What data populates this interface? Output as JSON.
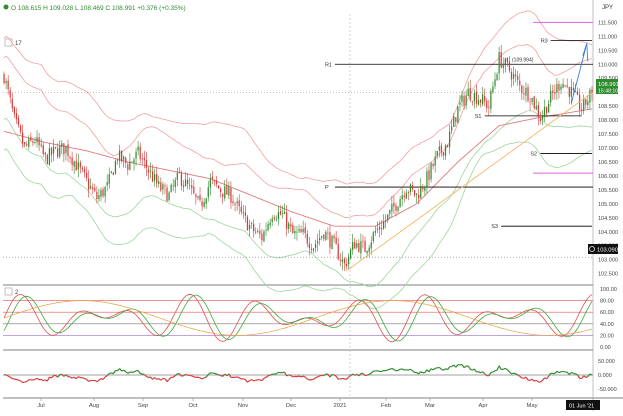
{
  "header": {
    "ohlc": "O 108.615  H 109.028  L 108.469  C 108.991  +0.376 (+0.35%)",
    "symbol": "JPY"
  },
  "panels": {
    "price_tag": "17",
    "osc_tag": "2",
    "date_badge": "01 Jun '21"
  },
  "colors": {
    "bull": "#2e8b2e",
    "bear": "#d83a3a",
    "band": "#f2a0a0",
    "band_green": "#9fd49f",
    "trend": "#f3b76a",
    "pivot": "#000000",
    "magenta": "#e060e0",
    "arrow": "#3b7dd8"
  },
  "chart_data": [
    {
      "type": "candlestick",
      "symbol": "JPY",
      "x_ticks": [
        "Jul",
        "Aug",
        "Sep",
        "Oct",
        "Nov",
        "Dec",
        "2021",
        "Feb",
        "Mar",
        "Apr",
        "May"
      ],
      "y_ticks": [
        102.5,
        103.0,
        103.5,
        104.0,
        104.5,
        105.0,
        105.5,
        106.0,
        106.5,
        107.0,
        107.5,
        108.0,
        108.5,
        109.0,
        109.5,
        110.0,
        110.5,
        111.0,
        111.5
      ],
      "ylim": [
        102.2,
        111.8
      ],
      "last_price": "108.991",
      "last_price_time": "15:48:10",
      "crosshair_price": "103.090",
      "pivots": [
        {
          "label": "R1",
          "value": 110.0
        },
        {
          "label": "P",
          "value": 105.6
        },
        {
          "label": "S1",
          "value": 108.15
        },
        {
          "label": "S2",
          "value": 106.8
        },
        {
          "label": "S3",
          "value": 104.2
        },
        {
          "label": "R3",
          "value": 110.85
        }
      ],
      "annotation": "(109.994)",
      "close_path": [
        [
          0,
          109.6
        ],
        [
          5,
          108.0
        ],
        [
          10,
          107.0
        ],
        [
          15,
          107.3
        ],
        [
          20,
          106.6
        ],
        [
          25,
          106.9
        ],
        [
          30,
          107.0
        ],
        [
          35,
          106.4
        ],
        [
          40,
          105.8
        ],
        [
          45,
          105.2
        ],
        [
          50,
          105.6
        ],
        [
          55,
          106.7
        ],
        [
          60,
          106.4
        ],
        [
          65,
          106.8
        ],
        [
          70,
          106.2
        ],
        [
          75,
          105.6
        ],
        [
          80,
          105.3
        ],
        [
          85,
          106.0
        ],
        [
          90,
          105.5
        ],
        [
          95,
          104.9
        ],
        [
          100,
          105.8
        ],
        [
          105,
          105.5
        ],
        [
          110,
          105.3
        ],
        [
          115,
          104.6
        ],
        [
          120,
          104.1
        ],
        [
          125,
          103.8
        ],
        [
          130,
          104.7
        ],
        [
          135,
          104.6
        ],
        [
          140,
          103.9
        ],
        [
          145,
          103.9
        ],
        [
          150,
          103.5
        ],
        [
          155,
          104.0
        ],
        [
          160,
          103.5
        ],
        [
          165,
          102.8
        ],
        [
          170,
          103.6
        ],
        [
          175,
          103.4
        ],
        [
          180,
          104.0
        ],
        [
          185,
          104.4
        ],
        [
          190,
          105.0
        ],
        [
          195,
          105.6
        ],
        [
          200,
          105.3
        ],
        [
          205,
          105.9
        ],
        [
          210,
          106.7
        ],
        [
          215,
          107.2
        ],
        [
          220,
          108.4
        ],
        [
          225,
          109.0
        ],
        [
          230,
          108.8
        ],
        [
          235,
          108.5
        ],
        [
          240,
          110.2
        ],
        [
          245,
          109.8
        ],
        [
          250,
          109.2
        ],
        [
          255,
          108.9
        ],
        [
          260,
          108.1
        ],
        [
          265,
          108.8
        ],
        [
          270,
          109.4
        ],
        [
          275,
          109.0
        ],
        [
          280,
          108.4
        ],
        [
          285,
          108.99
        ]
      ],
      "dema_path": [
        [
          0,
          107.6
        ],
        [
          20,
          107.2
        ],
        [
          40,
          106.9
        ],
        [
          60,
          106.5
        ],
        [
          80,
          106.2
        ],
        [
          100,
          105.9
        ],
        [
          120,
          105.3
        ],
        [
          140,
          104.7
        ],
        [
          160,
          104.2
        ],
        [
          180,
          104.2
        ],
        [
          200,
          105.0
        ],
        [
          220,
          106.5
        ],
        [
          240,
          107.8
        ],
        [
          260,
          108.1
        ],
        [
          285,
          108.4
        ]
      ]
    },
    {
      "type": "line",
      "name": "stochastic",
      "y_ticks": [
        0.0,
        20.0,
        40.0,
        60.0,
        80.0,
        100.0
      ],
      "ylim": [
        0,
        100
      ],
      "levels": [
        80,
        60,
        40,
        20
      ]
    },
    {
      "type": "line",
      "name": "momentum",
      "y_ticks": [
        50.0,
        0.0,
        -50.0
      ],
      "ylim": [
        -75,
        75
      ],
      "levels": [
        0
      ]
    }
  ]
}
